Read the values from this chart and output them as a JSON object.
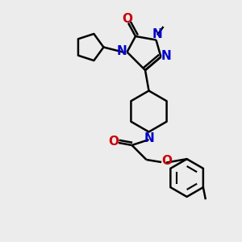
{
  "bg_color": "#ececec",
  "bond_color": "#000000",
  "N_color": "#0000cc",
  "O_color": "#cc0000",
  "line_width": 1.8,
  "font_size": 10,
  "fig_size": [
    3.0,
    3.0
  ],
  "dpi": 100,
  "xlim": [
    0,
    10
  ],
  "ylim": [
    0,
    10
  ]
}
